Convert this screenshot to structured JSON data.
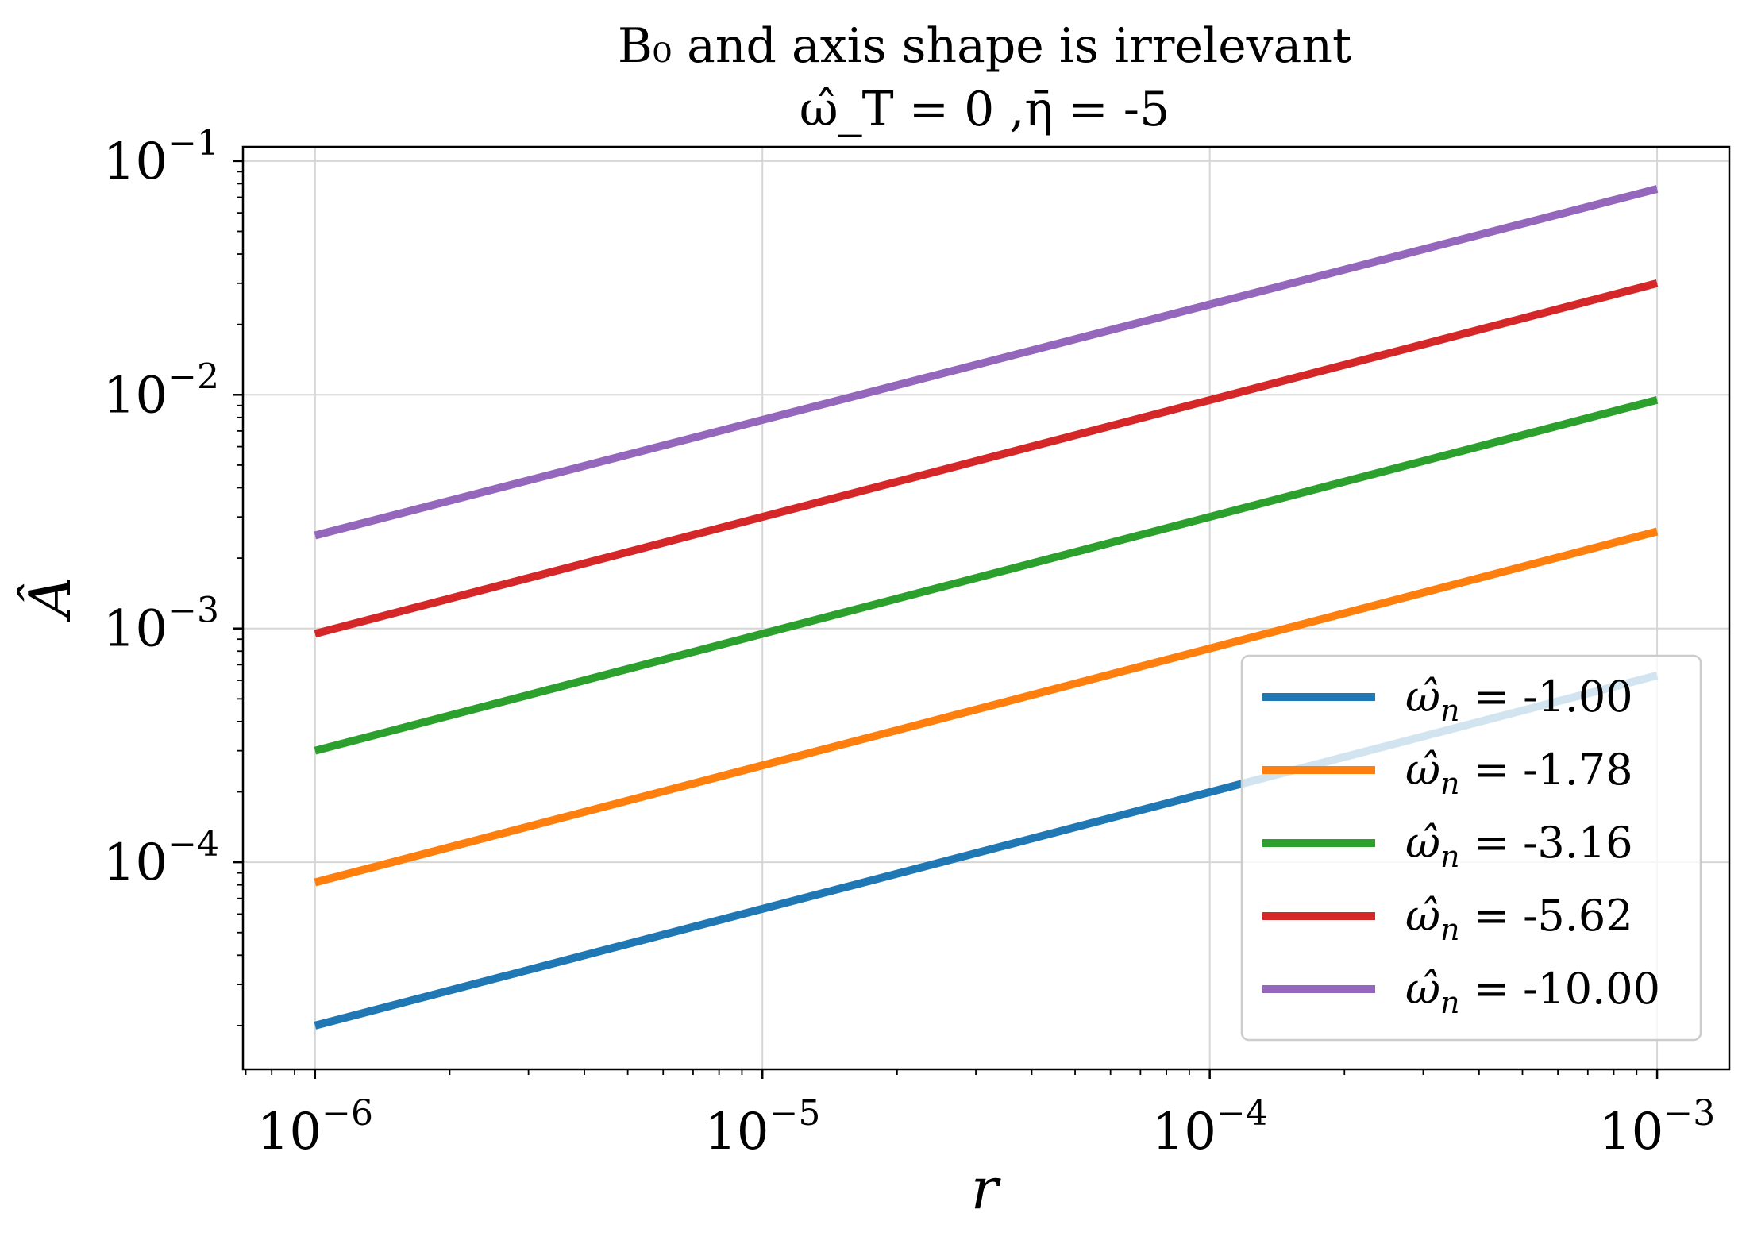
{
  "chart_data": {
    "type": "line",
    "title_line1": "B₀ and axis shape is irrelevant",
    "title_line2": "ω̂_T = 0 ,η̄ = -5",
    "xlabel": "r",
    "ylabel": "Â",
    "xscale": "log",
    "yscale": "log",
    "xlim": [
      6.9e-07,
      0.00145
    ],
    "ylim": [
      1.3e-05,
      0.115
    ],
    "grid": true,
    "legend_position": "lower right",
    "x_ticks": [
      1e-06,
      1e-05,
      0.0001,
      0.001
    ],
    "x_tick_labels": [
      {
        "base": "10",
        "exp": "−6"
      },
      {
        "base": "10",
        "exp": "−5"
      },
      {
        "base": "10",
        "exp": "−4"
      },
      {
        "base": "10",
        "exp": "−3"
      }
    ],
    "y_ticks": [
      0.0001,
      0.001,
      0.01,
      0.1
    ],
    "y_tick_labels": [
      {
        "base": "10",
        "exp": "−4"
      },
      {
        "base": "10",
        "exp": "−3"
      },
      {
        "base": "10",
        "exp": "−2"
      },
      {
        "base": "10",
        "exp": "−1"
      }
    ],
    "series": [
      {
        "name": "ω̂_n = -1.00",
        "legend_sym": "ω̂",
        "legend_sub": "n",
        "legend_val": " = -1.00",
        "color": "#1f77b4",
        "x": [
          1e-06,
          0.001
        ],
        "y": [
          2e-05,
          0.00063
        ]
      },
      {
        "name": "ω̂_n = -1.78",
        "legend_sym": "ω̂",
        "legend_sub": "n",
        "legend_val": " = -1.78",
        "color": "#ff7f0e",
        "x": [
          1e-06,
          0.001
        ],
        "y": [
          8.2e-05,
          0.0026
        ]
      },
      {
        "name": "ω̂_n = -3.16",
        "legend_sym": "ω̂",
        "legend_sub": "n",
        "legend_val": " = -3.16",
        "color": "#2ca02c",
        "x": [
          1e-06,
          0.001
        ],
        "y": [
          0.0003,
          0.0095
        ]
      },
      {
        "name": "ω̂_n = -5.62",
        "legend_sym": "ω̂",
        "legend_sub": "n",
        "legend_val": " = -5.62",
        "color": "#d62728",
        "x": [
          1e-06,
          0.001
        ],
        "y": [
          0.00095,
          0.03
        ]
      },
      {
        "name": "ω̂_n = -10.00",
        "legend_sym": "ω̂",
        "legend_sub": "n",
        "legend_val": " = -10.00",
        "color": "#9467bd",
        "x": [
          1e-06,
          0.001
        ],
        "y": [
          0.0025,
          0.076
        ]
      }
    ]
  }
}
